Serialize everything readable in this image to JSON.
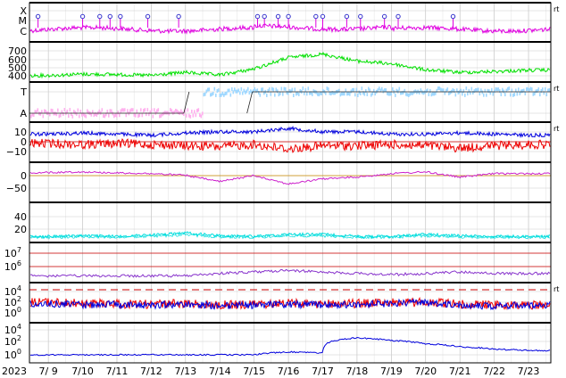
{
  "chart_data": {
    "type": "line",
    "year_label": "2023",
    "x": [
      "7/ 9",
      "7/10",
      "7/11",
      "7/12",
      "7/13",
      "7/14",
      "7/15",
      "7/16",
      "7/17",
      "7/18",
      "7/19",
      "7/20",
      "7/21",
      "7/22",
      "7/23"
    ],
    "panels": [
      {
        "id": "xray-flares",
        "type": "line",
        "y_ticks": [
          "X",
          "M",
          "C"
        ],
        "right_label": "rt",
        "grid": true,
        "colors": {
          "series": "#e000e0",
          "markers": "#3333cc"
        },
        "flare_markers": [
          "7/ 9",
          "7/10",
          "7/11",
          "7/11",
          "7/11",
          "7/12",
          "7/13",
          "7/15",
          "7/15",
          "7/16",
          "7/16",
          "7/17",
          "7/17",
          "7/18",
          "7/18",
          "7/19",
          "7/19",
          "7/21"
        ]
      },
      {
        "id": "solar-wind-speed",
        "type": "line",
        "y_ticks": [
          "700",
          "600",
          "500",
          "400"
        ],
        "ylim": [
          350,
          750
        ],
        "grid": true,
        "colors": {
          "series": "#00e000"
        },
        "series": [
          {
            "values": [
              395,
              410,
              405,
              395,
              430,
              400,
              470,
              600,
              640,
              560,
              530,
              460,
              430,
              440,
              455
            ]
          }
        ]
      },
      {
        "id": "imf-direction",
        "type": "scatter",
        "y_ticks": [
          "T",
          "A"
        ],
        "right_label": "rt",
        "grid": true,
        "colors": {
          "toward": "#a0d8ff",
          "away": "#ffb0ee",
          "line": "#222222"
        },
        "series": [
          {
            "values": [
              "A",
              "A",
              "A",
              "A",
              "A",
              "T",
              "T",
              "T",
              "T",
              "T",
              "T",
              "T",
              "T",
              "T",
              "T"
            ]
          }
        ]
      },
      {
        "id": "imf-bt-bz",
        "type": "line",
        "y_ticks": [
          "10",
          "0",
          "−10"
        ],
        "ylim": [
          -15,
          15
        ],
        "right_label": "rt",
        "grid": true,
        "colors": {
          "bt": "#0000dd",
          "bz": "#ee0000"
        },
        "series": [
          {
            "values": [
              7,
              8,
              7,
              6,
              8,
              9,
              9,
              12,
              9,
              9,
              7,
              7,
              8,
              7,
              6
            ]
          },
          {
            "values": [
              -1,
              -2,
              -1,
              -2,
              -3,
              -4,
              -2,
              -6,
              -3,
              -3,
              -2,
              -3,
              -5,
              -3,
              -2
            ]
          }
        ]
      },
      {
        "id": "dst-index",
        "type": "line",
        "y_ticks": [
          "0",
          "−50"
        ],
        "ylim": [
          -80,
          20
        ],
        "grid": true,
        "colors": {
          "series": "#cc22cc",
          "zero": "#c88a00"
        },
        "series": [
          {
            "values": [
              -2,
              0,
              -3,
              -5,
              -10,
              -28,
              -10,
              -35,
              -20,
              -15,
              -5,
              0,
              -15,
              -5,
              -5
            ]
          }
        ]
      },
      {
        "id": "kp-index",
        "type": "line",
        "y_ticks": [
          "40",
          "20"
        ],
        "ylim": [
          0,
          50
        ],
        "grid": true,
        "colors": {
          "series": "#00dddd"
        },
        "series": [
          {
            "values": [
              5,
              6,
              5,
              7,
              10,
              6,
              5,
              8,
              8,
              5,
              5,
              8,
              6,
              5,
              5
            ]
          }
        ]
      },
      {
        "id": "electron-flux",
        "type": "line",
        "y_ticks": [
          "10^7",
          "10^6"
        ],
        "y_log": true,
        "grid": true,
        "colors": {
          "series": "#8833cc",
          "threshold": "#cc0000"
        },
        "series": [
          {
            "values": [
              200000,
              200000,
              200000,
              200000,
              200000,
              300000,
              400000,
              500000,
              400000,
              300000,
              250000,
              300000,
              400000,
              300000,
              300000
            ]
          }
        ]
      },
      {
        "id": "proton-flux",
        "type": "line",
        "y_ticks": [
          "10^4",
          "10^2",
          "10^0"
        ],
        "y_log": true,
        "right_label": "rt",
        "grid": true,
        "colors": {
          "s1": "#0000dd",
          "s2": "#ee0000",
          "threshold": "#cc0000"
        },
        "series": [
          {
            "values": [
              50,
              30,
              40,
              30,
              40,
              20,
              30,
              40,
              30,
              40,
              60,
              80,
              30,
              20,
              30
            ]
          },
          {
            "values": [
              100,
              60,
              50,
              40,
              60,
              30,
              40,
              60,
              50,
              60,
              80,
              100,
              40,
              30,
              30
            ]
          }
        ]
      },
      {
        "id": "high-energy-proton",
        "type": "line",
        "y_ticks": [
          "10^4",
          "10^2",
          "10^0"
        ],
        "y_log": true,
        "grid": true,
        "colors": {
          "series": "#0000dd"
        },
        "series": [
          {
            "values": [
              1,
              1,
              1,
              1,
              1,
              1,
              1,
              3,
              2,
              500,
              200,
              60,
              20,
              8,
              5
            ]
          }
        ]
      }
    ]
  }
}
